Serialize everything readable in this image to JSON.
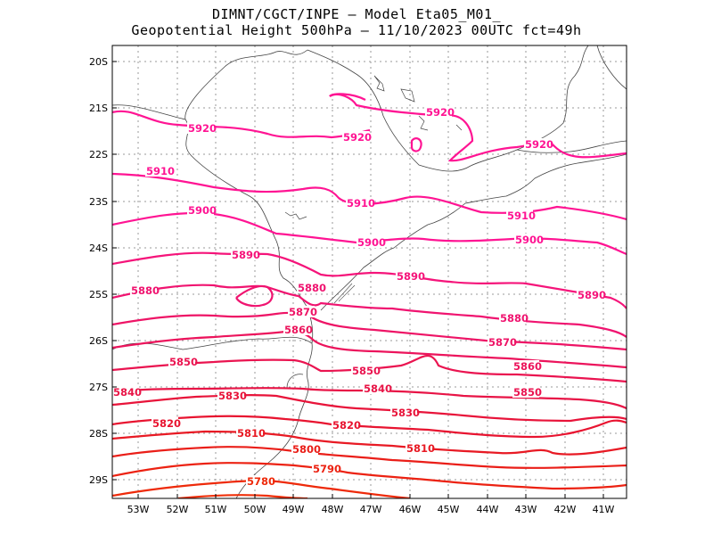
{
  "title_line1": "DIMNT/CGCT/INPE –  Model Eta05_M01_",
  "title_line2": "Geopotential Height 500hPa –  11/10/2023 00UTC fct=49h",
  "lat_labels": [
    "20S",
    "21S",
    "22S",
    "23S",
    "24S",
    "25S",
    "26S",
    "27S",
    "28S",
    "29S"
  ],
  "lon_labels": [
    "53W",
    "52W",
    "51W",
    "50W",
    "49W",
    "48W",
    "47W",
    "46W",
    "45W",
    "44W",
    "43W",
    "42W",
    "41W"
  ],
  "contours": [
    {
      "level": 5920,
      "color": "#ff1493",
      "labels": [
        "5920",
        "5920",
        "5920",
        "5920"
      ]
    },
    {
      "level": 5910,
      "color": "#ff1493",
      "labels": [
        "5910",
        "5910",
        "5910"
      ]
    },
    {
      "level": 5900,
      "color": "#ff1493",
      "labels": [
        "5900",
        "5900",
        "5900"
      ]
    },
    {
      "level": 5890,
      "color": "#f5147a",
      "labels": [
        "5890",
        "5890",
        "5890"
      ]
    },
    {
      "level": 5880,
      "color": "#f01470",
      "labels": [
        "5880",
        "5880",
        "5880"
      ]
    },
    {
      "level": 5870,
      "color": "#ee1466",
      "labels": [
        "5870",
        "5870"
      ]
    },
    {
      "level": 5860,
      "color": "#ec145c",
      "labels": [
        "5860",
        "5860"
      ]
    },
    {
      "level": 5850,
      "color": "#ea1450",
      "labels": [
        "5850",
        "5850",
        "5850"
      ]
    },
    {
      "level": 5840,
      "color": "#e81446",
      "labels": [
        "5840",
        "5840"
      ]
    },
    {
      "level": 5830,
      "color": "#e8143a",
      "labels": [
        "5830",
        "5830"
      ]
    },
    {
      "level": 5820,
      "color": "#e81430",
      "labels": [
        "5820",
        "5820"
      ]
    },
    {
      "level": 5810,
      "color": "#e81a24",
      "labels": [
        "5810",
        "5810"
      ]
    },
    {
      "level": 5800,
      "color": "#ea1e18",
      "labels": [
        "5800"
      ]
    },
    {
      "level": 5790,
      "color": "#ec2212",
      "labels": [
        "5790"
      ]
    },
    {
      "level": 5780,
      "color": "#ee2a0a",
      "labels": [
        "5780"
      ]
    }
  ]
}
